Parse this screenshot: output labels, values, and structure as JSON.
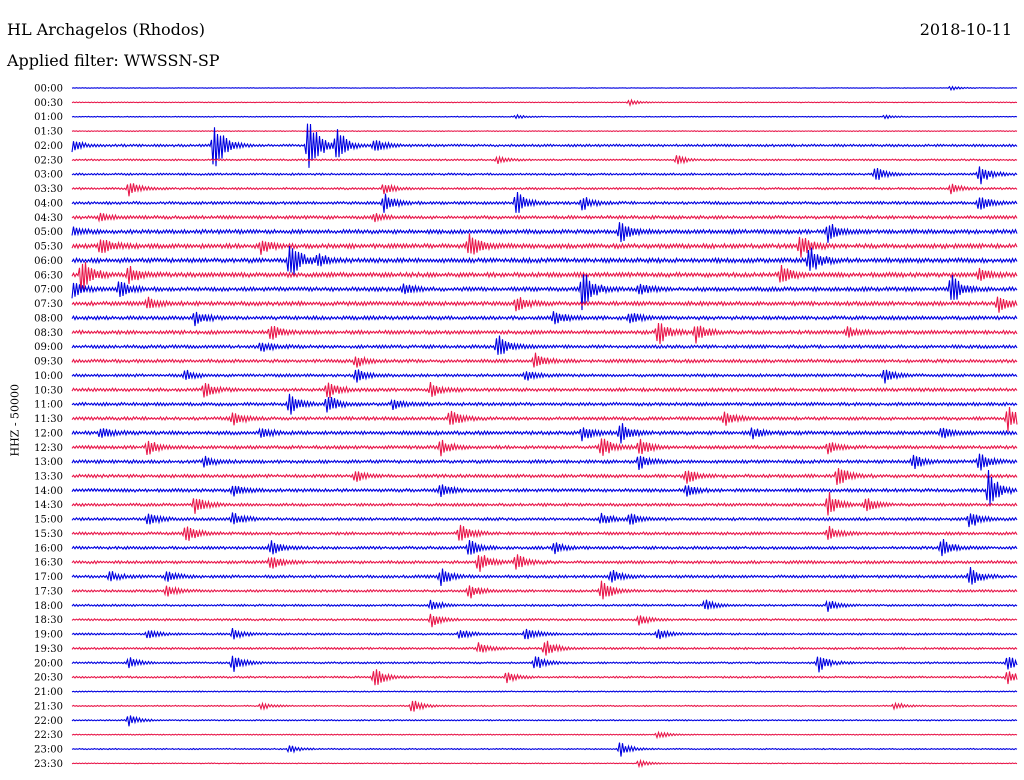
{
  "header": {
    "station": "HL Archagelos (Rhodos)",
    "date": "2018-10-11",
    "filter": "Applied filter: WWSSN-SP"
  },
  "colors": {
    "blue": "#0000e0",
    "red": "#e8174a",
    "text": "#000000",
    "background": "#ffffff"
  },
  "chart_data": {
    "type": "line",
    "title": "HL Archagelos (Rhodos)",
    "subtitle": "Applied filter: WWSSN-SP",
    "ylabel": "HHZ - 50000",
    "xlabel": "",
    "grid": false,
    "trace_colors": [
      "#0000e0",
      "#e8174a"
    ],
    "row_labels": [
      "00:00",
      "00:30",
      "01:00",
      "01:30",
      "02:00",
      "02:30",
      "03:00",
      "03:30",
      "04:00",
      "04:30",
      "05:00",
      "05:30",
      "06:00",
      "06:30",
      "07:00",
      "07:30",
      "08:00",
      "08:30",
      "09:00",
      "09:30",
      "10:00",
      "10:30",
      "11:00",
      "11:30",
      "12:00",
      "12:30",
      "13:00",
      "13:30",
      "14:00",
      "14:30",
      "15:00",
      "15:30",
      "16:00",
      "16:30",
      "17:00",
      "17:30",
      "18:00",
      "18:30",
      "19:00",
      "19:30",
      "20:00",
      "20:30",
      "21:00",
      "21:30",
      "22:00",
      "22:30",
      "23:00",
      "23:30"
    ],
    "noise_level": [
      0.3,
      0.4,
      0.4,
      0.4,
      1.2,
      0.8,
      1.0,
      1.0,
      1.4,
      1.6,
      2.0,
      2.2,
      2.2,
      2.2,
      2.0,
      2.0,
      1.8,
      1.8,
      1.6,
      1.6,
      1.4,
      1.6,
      1.6,
      1.6,
      1.8,
      1.6,
      1.6,
      1.6,
      1.6,
      1.4,
      1.4,
      1.4,
      1.4,
      1.4,
      1.4,
      1.2,
      1.0,
      1.0,
      1.0,
      1.0,
      0.9,
      0.9,
      0.6,
      0.6,
      0.6,
      0.5,
      0.6,
      0.4
    ],
    "events": [
      {
        "row": 0,
        "x": 0.93,
        "amp": 2
      },
      {
        "row": 1,
        "x": 0.59,
        "amp": 3
      },
      {
        "row": 2,
        "x": 0.47,
        "amp": 2
      },
      {
        "row": 2,
        "x": 0.86,
        "amp": 2
      },
      {
        "row": 4,
        "x": 0.15,
        "amp": 30
      },
      {
        "row": 4,
        "x": 0.25,
        "amp": 40
      },
      {
        "row": 4,
        "x": 0.28,
        "amp": 18
      },
      {
        "row": 4,
        "x": 0.32,
        "amp": 8
      },
      {
        "row": 4,
        "x": 0.0,
        "amp": 6
      },
      {
        "row": 5,
        "x": 0.45,
        "amp": 4
      },
      {
        "row": 5,
        "x": 0.64,
        "amp": 5
      },
      {
        "row": 6,
        "x": 0.85,
        "amp": 8
      },
      {
        "row": 6,
        "x": 0.96,
        "amp": 12
      },
      {
        "row": 7,
        "x": 0.06,
        "amp": 8
      },
      {
        "row": 7,
        "x": 0.33,
        "amp": 6
      },
      {
        "row": 7,
        "x": 0.93,
        "amp": 5
      },
      {
        "row": 8,
        "x": 0.33,
        "amp": 10
      },
      {
        "row": 8,
        "x": 0.47,
        "amp": 12
      },
      {
        "row": 8,
        "x": 0.54,
        "amp": 8
      },
      {
        "row": 8,
        "x": 0.96,
        "amp": 9
      },
      {
        "row": 9,
        "x": 0.03,
        "amp": 5
      },
      {
        "row": 9,
        "x": 0.32,
        "amp": 4
      },
      {
        "row": 10,
        "x": 0.58,
        "amp": 12
      },
      {
        "row": 10,
        "x": 0.8,
        "amp": 10
      },
      {
        "row": 10,
        "x": 0.0,
        "amp": 4
      },
      {
        "row": 11,
        "x": 0.42,
        "amp": 14
      },
      {
        "row": 11,
        "x": 0.2,
        "amp": 8
      },
      {
        "row": 11,
        "x": 0.77,
        "amp": 12
      },
      {
        "row": 11,
        "x": 0.03,
        "amp": 10
      },
      {
        "row": 12,
        "x": 0.23,
        "amp": 22
      },
      {
        "row": 12,
        "x": 0.78,
        "amp": 16
      },
      {
        "row": 12,
        "x": 0.26,
        "amp": 6
      },
      {
        "row": 13,
        "x": 0.01,
        "amp": 20
      },
      {
        "row": 13,
        "x": 0.06,
        "amp": 10
      },
      {
        "row": 13,
        "x": 0.75,
        "amp": 10
      },
      {
        "row": 13,
        "x": 0.96,
        "amp": 6
      },
      {
        "row": 14,
        "x": 0.0,
        "amp": 10
      },
      {
        "row": 14,
        "x": 0.05,
        "amp": 10
      },
      {
        "row": 14,
        "x": 0.35,
        "amp": 6
      },
      {
        "row": 14,
        "x": 0.54,
        "amp": 22
      },
      {
        "row": 14,
        "x": 0.6,
        "amp": 6
      },
      {
        "row": 14,
        "x": 0.93,
        "amp": 18
      },
      {
        "row": 15,
        "x": 0.08,
        "amp": 6
      },
      {
        "row": 15,
        "x": 0.47,
        "amp": 8
      },
      {
        "row": 15,
        "x": 0.98,
        "amp": 10
      },
      {
        "row": 16,
        "x": 0.13,
        "amp": 8
      },
      {
        "row": 16,
        "x": 0.51,
        "amp": 8
      },
      {
        "row": 16,
        "x": 0.59,
        "amp": 6
      },
      {
        "row": 17,
        "x": 0.21,
        "amp": 8
      },
      {
        "row": 17,
        "x": 0.62,
        "amp": 14
      },
      {
        "row": 17,
        "x": 0.66,
        "amp": 10
      },
      {
        "row": 17,
        "x": 0.82,
        "amp": 6
      },
      {
        "row": 18,
        "x": 0.45,
        "amp": 14
      },
      {
        "row": 18,
        "x": 0.2,
        "amp": 6
      },
      {
        "row": 19,
        "x": 0.3,
        "amp": 6
      },
      {
        "row": 19,
        "x": 0.49,
        "amp": 8
      },
      {
        "row": 20,
        "x": 0.12,
        "amp": 6
      },
      {
        "row": 20,
        "x": 0.3,
        "amp": 8
      },
      {
        "row": 20,
        "x": 0.48,
        "amp": 6
      },
      {
        "row": 20,
        "x": 0.86,
        "amp": 8
      },
      {
        "row": 21,
        "x": 0.14,
        "amp": 8
      },
      {
        "row": 21,
        "x": 0.27,
        "amp": 10
      },
      {
        "row": 21,
        "x": 0.38,
        "amp": 8
      },
      {
        "row": 22,
        "x": 0.23,
        "amp": 12
      },
      {
        "row": 22,
        "x": 0.27,
        "amp": 10
      },
      {
        "row": 22,
        "x": 0.34,
        "amp": 6
      },
      {
        "row": 23,
        "x": 0.17,
        "amp": 8
      },
      {
        "row": 23,
        "x": 0.4,
        "amp": 10
      },
      {
        "row": 23,
        "x": 0.69,
        "amp": 8
      },
      {
        "row": 23,
        "x": 0.99,
        "amp": 14
      },
      {
        "row": 24,
        "x": 0.03,
        "amp": 6
      },
      {
        "row": 24,
        "x": 0.2,
        "amp": 6
      },
      {
        "row": 24,
        "x": 0.54,
        "amp": 8
      },
      {
        "row": 24,
        "x": 0.58,
        "amp": 12
      },
      {
        "row": 24,
        "x": 0.72,
        "amp": 6
      },
      {
        "row": 24,
        "x": 0.92,
        "amp": 6
      },
      {
        "row": 25,
        "x": 0.08,
        "amp": 8
      },
      {
        "row": 25,
        "x": 0.39,
        "amp": 8
      },
      {
        "row": 25,
        "x": 0.56,
        "amp": 12
      },
      {
        "row": 25,
        "x": 0.6,
        "amp": 10
      },
      {
        "row": 25,
        "x": 0.8,
        "amp": 6
      },
      {
        "row": 26,
        "x": 0.14,
        "amp": 6
      },
      {
        "row": 26,
        "x": 0.6,
        "amp": 8
      },
      {
        "row": 26,
        "x": 0.89,
        "amp": 8
      },
      {
        "row": 26,
        "x": 0.96,
        "amp": 10
      },
      {
        "row": 27,
        "x": 0.3,
        "amp": 6
      },
      {
        "row": 27,
        "x": 0.65,
        "amp": 8
      },
      {
        "row": 27,
        "x": 0.81,
        "amp": 12
      },
      {
        "row": 28,
        "x": 0.17,
        "amp": 6
      },
      {
        "row": 28,
        "x": 0.39,
        "amp": 8
      },
      {
        "row": 28,
        "x": 0.65,
        "amp": 6
      },
      {
        "row": 28,
        "x": 0.97,
        "amp": 20
      },
      {
        "row": 29,
        "x": 0.13,
        "amp": 10
      },
      {
        "row": 29,
        "x": 0.8,
        "amp": 14
      },
      {
        "row": 29,
        "x": 0.84,
        "amp": 8
      },
      {
        "row": 30,
        "x": 0.08,
        "amp": 8
      },
      {
        "row": 30,
        "x": 0.17,
        "amp": 8
      },
      {
        "row": 30,
        "x": 0.56,
        "amp": 6
      },
      {
        "row": 30,
        "x": 0.59,
        "amp": 6
      },
      {
        "row": 30,
        "x": 0.95,
        "amp": 10
      },
      {
        "row": 31,
        "x": 0.12,
        "amp": 10
      },
      {
        "row": 31,
        "x": 0.41,
        "amp": 12
      },
      {
        "row": 31,
        "x": 0.8,
        "amp": 8
      },
      {
        "row": 32,
        "x": 0.21,
        "amp": 8
      },
      {
        "row": 32,
        "x": 0.42,
        "amp": 10
      },
      {
        "row": 32,
        "x": 0.51,
        "amp": 6
      },
      {
        "row": 32,
        "x": 0.92,
        "amp": 10
      },
      {
        "row": 33,
        "x": 0.21,
        "amp": 8
      },
      {
        "row": 33,
        "x": 0.43,
        "amp": 12
      },
      {
        "row": 33,
        "x": 0.47,
        "amp": 10
      },
      {
        "row": 34,
        "x": 0.04,
        "amp": 6
      },
      {
        "row": 34,
        "x": 0.1,
        "amp": 6
      },
      {
        "row": 34,
        "x": 0.39,
        "amp": 10
      },
      {
        "row": 34,
        "x": 0.57,
        "amp": 8
      },
      {
        "row": 34,
        "x": 0.95,
        "amp": 10
      },
      {
        "row": 35,
        "x": 0.1,
        "amp": 6
      },
      {
        "row": 35,
        "x": 0.42,
        "amp": 8
      },
      {
        "row": 35,
        "x": 0.56,
        "amp": 12
      },
      {
        "row": 36,
        "x": 0.38,
        "amp": 6
      },
      {
        "row": 36,
        "x": 0.67,
        "amp": 6
      },
      {
        "row": 36,
        "x": 0.8,
        "amp": 6
      },
      {
        "row": 37,
        "x": 0.38,
        "amp": 8
      },
      {
        "row": 37,
        "x": 0.6,
        "amp": 6
      },
      {
        "row": 38,
        "x": 0.08,
        "amp": 6
      },
      {
        "row": 38,
        "x": 0.17,
        "amp": 6
      },
      {
        "row": 38,
        "x": 0.41,
        "amp": 6
      },
      {
        "row": 38,
        "x": 0.48,
        "amp": 8
      },
      {
        "row": 38,
        "x": 0.62,
        "amp": 6
      },
      {
        "row": 39,
        "x": 0.43,
        "amp": 6
      },
      {
        "row": 39,
        "x": 0.5,
        "amp": 10
      },
      {
        "row": 40,
        "x": 0.06,
        "amp": 6
      },
      {
        "row": 40,
        "x": 0.17,
        "amp": 10
      },
      {
        "row": 40,
        "x": 0.49,
        "amp": 8
      },
      {
        "row": 40,
        "x": 0.79,
        "amp": 10
      },
      {
        "row": 40,
        "x": 0.99,
        "amp": 8
      },
      {
        "row": 41,
        "x": 0.32,
        "amp": 12
      },
      {
        "row": 41,
        "x": 0.46,
        "amp": 6
      },
      {
        "row": 41,
        "x": 0.99,
        "amp": 8
      },
      {
        "row": 43,
        "x": 0.2,
        "amp": 4
      },
      {
        "row": 43,
        "x": 0.36,
        "amp": 8
      },
      {
        "row": 43,
        "x": 0.87,
        "amp": 4
      },
      {
        "row": 44,
        "x": 0.06,
        "amp": 6
      },
      {
        "row": 45,
        "x": 0.62,
        "amp": 4
      },
      {
        "row": 46,
        "x": 0.23,
        "amp": 4
      },
      {
        "row": 46,
        "x": 0.58,
        "amp": 8
      },
      {
        "row": 47,
        "x": 0.6,
        "amp": 4
      }
    ]
  }
}
